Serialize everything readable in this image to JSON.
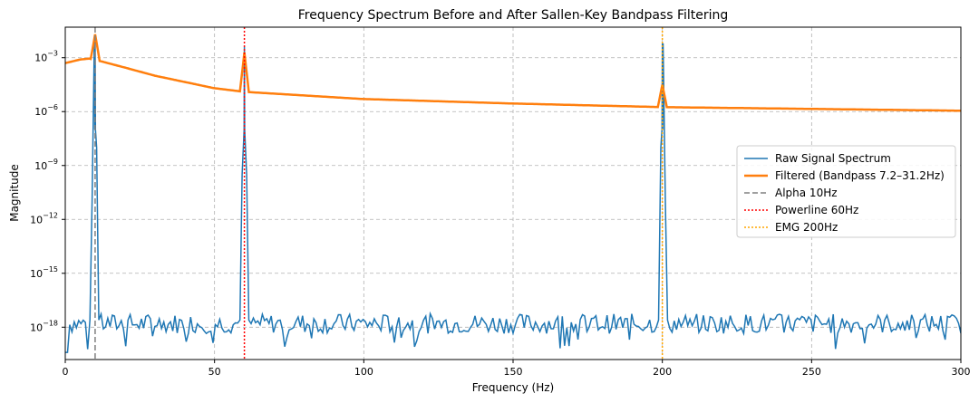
{
  "chart_data": {
    "type": "line",
    "title": "Frequency Spectrum Before and After Sallen-Key Bandpass Filtering",
    "xlabel": "Frequency (Hz)",
    "ylabel": "Magnitude",
    "xlim": [
      0,
      300
    ],
    "ylim_log10": [
      -19.8,
      -1.3
    ],
    "y_scale": "log",
    "grid": true,
    "x_ticks": [
      {
        "value": 0,
        "label": "0"
      },
      {
        "value": 50,
        "label": "50"
      },
      {
        "value": 100,
        "label": "100"
      },
      {
        "value": 150,
        "label": "150"
      },
      {
        "value": 200,
        "label": "200"
      },
      {
        "value": 250,
        "label": "250"
      },
      {
        "value": 300,
        "label": "300"
      }
    ],
    "y_ticks": [
      {
        "exp": -3,
        "base": "10",
        "sup": "−3"
      },
      {
        "exp": -6,
        "base": "10",
        "sup": "−6"
      },
      {
        "exp": -9,
        "base": "10",
        "sup": "−9"
      },
      {
        "exp": -12,
        "base": "10",
        "sup": "−12"
      },
      {
        "exp": -15,
        "base": "10",
        "sup": "−15"
      },
      {
        "exp": -18,
        "base": "10",
        "sup": "−18"
      }
    ],
    "series": [
      {
        "name": "Raw Signal Spectrum",
        "color": "#1f77b4",
        "noise_floor_log10": -17.8,
        "peaks": [
          {
            "x": 10,
            "log10": -2.0
          },
          {
            "x": 60,
            "log10": -2.4
          },
          {
            "x": 200,
            "log10": -2.2
          }
        ]
      },
      {
        "name": "Filtered (Bandpass 7.2–31.2Hz)",
        "color": "#ff7f0e",
        "points": [
          [
            0,
            -3.3
          ],
          [
            5,
            -3.1
          ],
          [
            8,
            -3.05
          ],
          [
            12,
            -3.2
          ],
          [
            20,
            -3.55
          ],
          [
            30,
            -4.0
          ],
          [
            40,
            -4.35
          ],
          [
            50,
            -4.7
          ],
          [
            60,
            -4.9
          ],
          [
            80,
            -5.1
          ],
          [
            100,
            -5.3
          ],
          [
            150,
            -5.55
          ],
          [
            200,
            -5.75
          ],
          [
            250,
            -5.85
          ],
          [
            300,
            -5.95
          ]
        ],
        "peaks": [
          {
            "x": 10,
            "log10": -1.7
          },
          {
            "x": 60,
            "log10": -2.7
          },
          {
            "x": 200,
            "log10": -4.5
          }
        ]
      },
      {
        "name": "Alpha 10Hz",
        "color": "#808080",
        "style": "dashed",
        "x": 10
      },
      {
        "name": "Powerline 60Hz",
        "color": "#ff0000",
        "style": "dotted",
        "x": 60
      },
      {
        "name": "EMG 200Hz",
        "color": "#ffa500",
        "style": "dotted",
        "x": 200
      }
    ],
    "legend_position": "center-right"
  }
}
